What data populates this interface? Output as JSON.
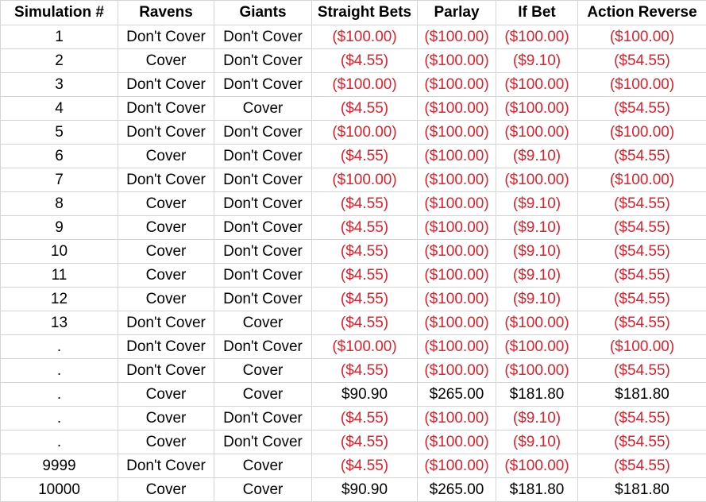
{
  "columns": [
    "Simulation #",
    "Ravens",
    "Giants",
    "Straight Bets",
    "Parlay",
    "If Bet",
    "Action Reverse"
  ],
  "colors": {
    "negative": "#e0202a",
    "positive": "#000000",
    "grid": "#d4d4d4"
  },
  "rows": [
    [
      "1",
      "Don't Cover",
      "Don't Cover",
      "($100.00)",
      "($100.00)",
      "($100.00)",
      "($100.00)"
    ],
    [
      "2",
      "Cover",
      "Don't Cover",
      "($4.55)",
      "($100.00)",
      "($9.10)",
      "($54.55)"
    ],
    [
      "3",
      "Don't Cover",
      "Don't Cover",
      "($100.00)",
      "($100.00)",
      "($100.00)",
      "($100.00)"
    ],
    [
      "4",
      "Don't Cover",
      "Cover",
      "($4.55)",
      "($100.00)",
      "($100.00)",
      "($54.55)"
    ],
    [
      "5",
      "Don't Cover",
      "Don't Cover",
      "($100.00)",
      "($100.00)",
      "($100.00)",
      "($100.00)"
    ],
    [
      "6",
      "Cover",
      "Don't Cover",
      "($4.55)",
      "($100.00)",
      "($9.10)",
      "($54.55)"
    ],
    [
      "7",
      "Don't Cover",
      "Don't Cover",
      "($100.00)",
      "($100.00)",
      "($100.00)",
      "($100.00)"
    ],
    [
      "8",
      "Cover",
      "Don't Cover",
      "($4.55)",
      "($100.00)",
      "($9.10)",
      "($54.55)"
    ],
    [
      "9",
      "Cover",
      "Don't Cover",
      "($4.55)",
      "($100.00)",
      "($9.10)",
      "($54.55)"
    ],
    [
      "10",
      "Cover",
      "Don't Cover",
      "($4.55)",
      "($100.00)",
      "($9.10)",
      "($54.55)"
    ],
    [
      "11",
      "Cover",
      "Don't Cover",
      "($4.55)",
      "($100.00)",
      "($9.10)",
      "($54.55)"
    ],
    [
      "12",
      "Cover",
      "Don't Cover",
      "($4.55)",
      "($100.00)",
      "($9.10)",
      "($54.55)"
    ],
    [
      "13",
      "Don't Cover",
      "Cover",
      "($4.55)",
      "($100.00)",
      "($100.00)",
      "($54.55)"
    ],
    [
      ".",
      "Don't Cover",
      "Don't Cover",
      "($100.00)",
      "($100.00)",
      "($100.00)",
      "($100.00)"
    ],
    [
      ".",
      "Don't Cover",
      "Cover",
      "($4.55)",
      "($100.00)",
      "($100.00)",
      "($54.55)"
    ],
    [
      ".",
      "Cover",
      "Cover",
      "$90.90",
      "$265.00",
      "$181.80",
      "$181.80"
    ],
    [
      ".",
      "Cover",
      "Don't Cover",
      "($4.55)",
      "($100.00)",
      "($9.10)",
      "($54.55)"
    ],
    [
      ".",
      "Cover",
      "Don't Cover",
      "($4.55)",
      "($100.00)",
      "($9.10)",
      "($54.55)"
    ],
    [
      "9999",
      "Don't Cover",
      "Cover",
      "($4.55)",
      "($100.00)",
      "($100.00)",
      "($54.55)"
    ],
    [
      "10000",
      "Cover",
      "Cover",
      "$90.90",
      "$265.00",
      "$181.80",
      "$181.80"
    ]
  ]
}
